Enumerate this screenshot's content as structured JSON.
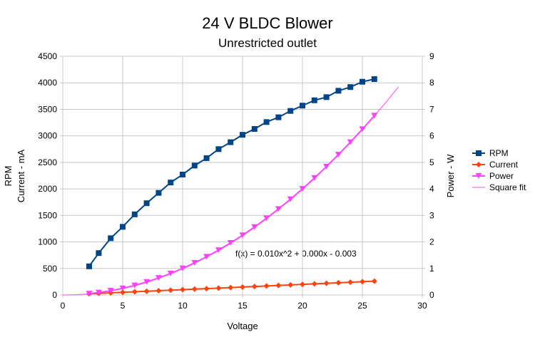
{
  "chart_data": {
    "type": "line",
    "title": "24 V BLDC Blower",
    "subtitle": "Unrestricted outlet",
    "xlabel": "Voltage",
    "ylabel_left": [
      "RPM",
      "Current - mA"
    ],
    "ylabel_right": "Power - W",
    "xlim": [
      0,
      30
    ],
    "xticks": [
      0,
      5,
      10,
      15,
      20,
      25,
      30
    ],
    "ylim_left": [
      0,
      4500
    ],
    "yticks_left": [
      0,
      500,
      1000,
      1500,
      2000,
      2500,
      3000,
      3500,
      4000,
      4500
    ],
    "ylim_right": [
      0,
      9
    ],
    "yticks_right": [
      0,
      1,
      2,
      3,
      4,
      5,
      6,
      7,
      8,
      9
    ],
    "grid": true,
    "legend_position": "right",
    "x": [
      2.2,
      3,
      4,
      5,
      6,
      7,
      8,
      9,
      10,
      11,
      12,
      13,
      14,
      15,
      16,
      17,
      18,
      19,
      20,
      21,
      22,
      23,
      24,
      25,
      26
    ],
    "series": [
      {
        "name": "RPM",
        "axis": "left",
        "color": "#004586",
        "marker": "square",
        "values": [
          540,
          790,
          1070,
          1285,
          1520,
          1730,
          1925,
          2120,
          2270,
          2440,
          2580,
          2750,
          2880,
          3020,
          3130,
          3260,
          3350,
          3470,
          3570,
          3670,
          3730,
          3850,
          3920,
          4020,
          4070
        ]
      },
      {
        "name": "Current",
        "axis": "left",
        "color": "#ff420e",
        "marker": "diamond",
        "values": [
          22,
          30,
          40,
          50,
          60,
          70,
          80,
          90,
          100,
          110,
          120,
          130,
          140,
          150,
          160,
          170,
          180,
          190,
          200,
          210,
          220,
          230,
          240,
          250,
          260
        ]
      },
      {
        "name": "Power",
        "axis": "right",
        "color": "#ff40ff",
        "marker": "triangle-down",
        "values": [
          0.05,
          0.09,
          0.16,
          0.25,
          0.36,
          0.49,
          0.64,
          0.81,
          1.0,
          1.21,
          1.44,
          1.69,
          1.96,
          2.25,
          2.56,
          2.89,
          3.24,
          3.61,
          4.0,
          4.41,
          4.84,
          5.29,
          5.76,
          6.25,
          6.76
        ]
      },
      {
        "name": "Square fit",
        "axis": "right",
        "color": "#ff40ff",
        "trendline": true,
        "x_range": [
          0,
          28
        ],
        "coefficients": [
          0.01,
          0.0,
          -0.003
        ]
      }
    ],
    "annotation": "f(x) = 0.010x^2 + 0.000x - 0.003"
  }
}
